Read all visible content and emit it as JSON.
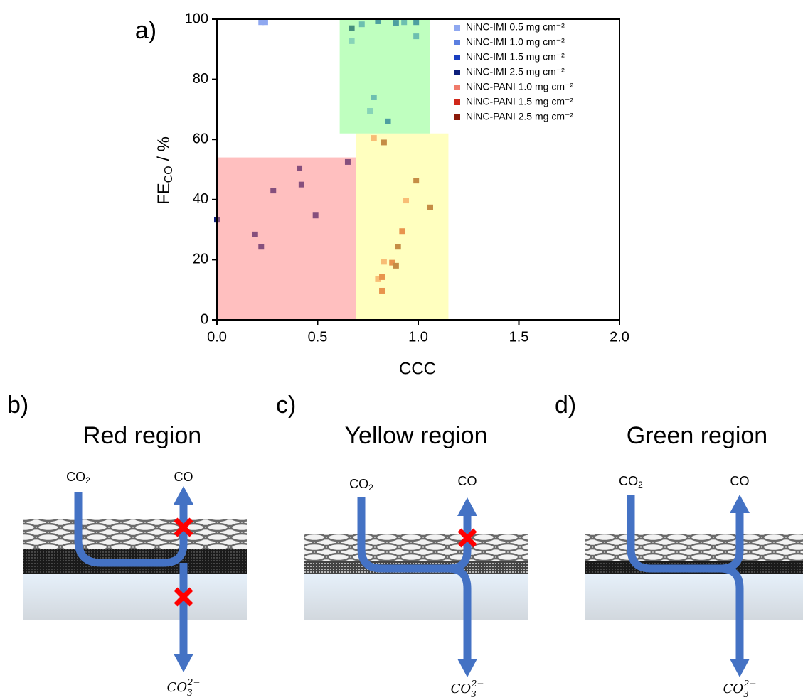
{
  "chart_data": {
    "type": "scatter",
    "panel_label": "a)",
    "x_label": "CCC",
    "y_label": {
      "main": "FE",
      "sub": "CO",
      "rest": " / %"
    },
    "xlim": [
      0,
      2
    ],
    "ylim": [
      0,
      100
    ],
    "xticks": [
      {
        "value": 0,
        "label": "0.0"
      },
      {
        "value": 0.5,
        "label": "0.5"
      },
      {
        "value": 1,
        "label": "1.0"
      },
      {
        "value": 1.5,
        "label": "1.5"
      },
      {
        "value": 2,
        "label": "2.0"
      }
    ],
    "yticks": [
      0,
      20,
      40,
      60,
      80,
      100
    ],
    "legend": "upper right",
    "regions": [
      {
        "color": "#ff7f7f",
        "xlim": [
          0,
          0.69
        ],
        "ylim": [
          0,
          54
        ]
      },
      {
        "color": "#ffff80",
        "xlim": [
          0.69,
          1.15
        ],
        "ylim": [
          0,
          62
        ]
      },
      {
        "color": "#80ff80",
        "xlim": [
          0.61,
          1.06
        ],
        "ylim": [
          62,
          100
        ]
      }
    ],
    "series": [
      {
        "name": "NiNC-IMI 0.5 mg cm⁻²",
        "color": "#8fa8f0",
        "x": [
          0.22,
          0.24,
          0.67,
          0.76
        ],
        "y": [
          99,
          99,
          92.7,
          69.5
        ]
      },
      {
        "name": "NiNC-IMI 1.0 mg cm⁻²",
        "color": "#5b7fe0",
        "x": [
          0.72,
          0.93,
          0.99,
          0.78
        ],
        "y": [
          98.3,
          99,
          94.3,
          74
        ]
      },
      {
        "name": "NiNC-IMI 1.5 mg cm⁻²",
        "color": "#1a3fc0",
        "x": [
          0.89,
          0.99,
          0.85,
          0.8
        ],
        "y": [
          98.8,
          99,
          66,
          99.3
        ]
      },
      {
        "name": "NiNC-IMI 2.5 mg cm⁻²",
        "color": "#0d1f7a",
        "x": [
          0.67,
          0,
          0.19,
          0.22,
          0.28,
          0.41,
          0.42,
          0.49,
          0.65
        ],
        "y": [
          97,
          33.3,
          28.4,
          24.3,
          43,
          50.4,
          45,
          34.7,
          52.5
        ]
      },
      {
        "name": "NiNC-PANI 1.0 mg cm⁻²",
        "color": "#f07b6b",
        "x": [
          0.78,
          0.94,
          0.83,
          0.8
        ],
        "y": [
          60.5,
          39.7,
          19.3,
          13.5
        ]
      },
      {
        "name": "NiNC-PANI 1.5 mg cm⁻²",
        "color": "#d0281a",
        "x": [
          0.92,
          0.87,
          0.82,
          0.82
        ],
        "y": [
          29.5,
          19,
          14.2,
          9.7
        ]
      },
      {
        "name": "NiNC-PANI 2.5 mg cm⁻²",
        "color": "#8b1a0a",
        "x": [
          0.83,
          0.99,
          1.06,
          0.9,
          0.89
        ],
        "y": [
          59,
          46.3,
          37.4,
          24.3,
          18
        ]
      }
    ]
  },
  "panels": [
    {
      "label": "b)",
      "title": "Red region",
      "co2": {
        "main": "CO",
        "sub": "2"
      },
      "co": "CO",
      "carbonate": {
        "main": "CO",
        "sub": "3",
        "sup": "2−"
      }
    },
    {
      "label": "c)",
      "title": "Yellow region",
      "co2": {
        "main": "CO",
        "sub": "2"
      },
      "co": "CO",
      "carbonate": {
        "main": "CO",
        "sub": "3",
        "sup": "2−"
      }
    },
    {
      "label": "d)",
      "title": "Green region",
      "co2": {
        "main": "CO",
        "sub": "2"
      },
      "co": "CO",
      "carbonate": {
        "main": "CO",
        "sub": "3",
        "sup": "2−"
      }
    }
  ]
}
